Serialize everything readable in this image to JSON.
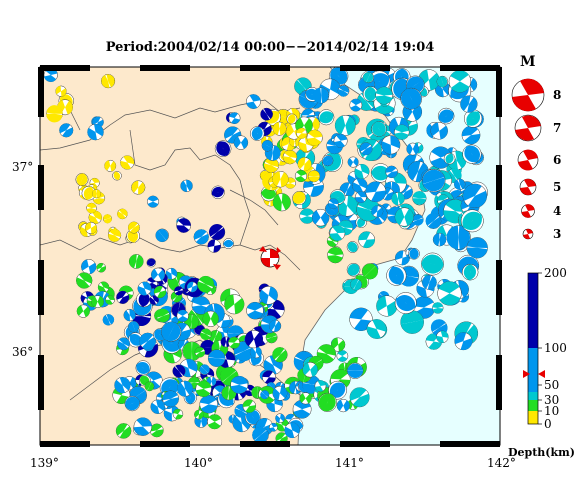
{
  "title": "Period:2004/02/14 00:00−−2014/02/14 19:04",
  "x_ticks": [
    "139°",
    "140°",
    "141°",
    "142°"
  ],
  "y_ticks": [
    "37°",
    "36°"
  ],
  "magnitude_legend": {
    "title": "M",
    "levels": [
      "8",
      "7",
      "6",
      "5",
      "4",
      "3"
    ]
  },
  "depth_colorbar": {
    "unit": "Depth(km)",
    "labels": [
      "200",
      "100",
      "50",
      "30",
      "10",
      "0"
    ],
    "colors": {
      "shallow": "#ffe800",
      "mid": "#22dd22",
      "teal": "#00c8d0",
      "blue": "#0096ee",
      "deep": "#0000aa"
    }
  },
  "map_colors": {
    "land": "#fde9cc",
    "sea": "#e6ffff",
    "mainshock": "#e80000"
  }
}
